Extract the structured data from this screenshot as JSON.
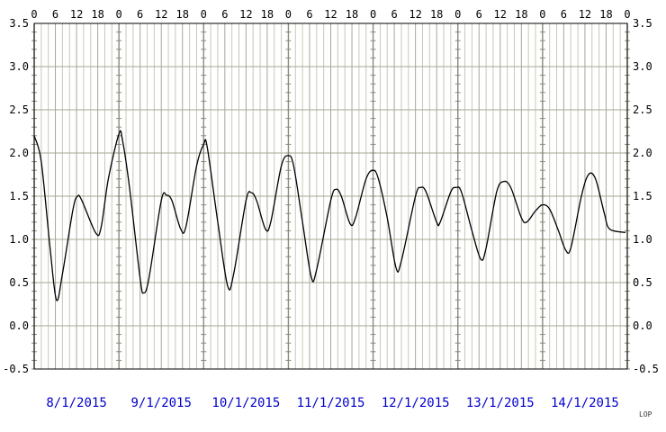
{
  "chart_data": {
    "type": "line",
    "title": "",
    "xlabel": "",
    "ylabel": "",
    "ylim": [
      -0.5,
      3.5
    ],
    "y_ticks": [
      "3.5",
      "3.0",
      "2.5",
      "2.0",
      "1.5",
      "1.0",
      "0.5",
      "0.0",
      "-0.5"
    ],
    "x_hour_ticks": [
      "0",
      "6",
      "12",
      "18"
    ],
    "x_hour_end": "0",
    "days": [
      "8/1/2015",
      "9/1/2015",
      "10/1/2015",
      "11/1/2015",
      "12/1/2015",
      "13/1/2015",
      "14/1/2015"
    ],
    "grid": true,
    "x_unit": "hours from 8/1/2015 0:00",
    "series": [
      {
        "values": [
          [
            0,
            2.2
          ],
          [
            2,
            1.9
          ],
          [
            4.5,
            0.9
          ],
          [
            6.3,
            0.3
          ],
          [
            8,
            0.6
          ],
          [
            11,
            1.35
          ],
          [
            12.3,
            1.5
          ],
          [
            13.5,
            1.45
          ],
          [
            17.5,
            1.07
          ],
          [
            19,
            1.15
          ],
          [
            21,
            1.7
          ],
          [
            24,
            2.22
          ],
          [
            25,
            2.15
          ],
          [
            27,
            1.6
          ],
          [
            30,
            0.55
          ],
          [
            31,
            0.38
          ],
          [
            32.5,
            0.55
          ],
          [
            36,
            1.45
          ],
          [
            37.5,
            1.51
          ],
          [
            39,
            1.45
          ],
          [
            41.5,
            1.12
          ],
          [
            43,
            1.15
          ],
          [
            46,
            1.85
          ],
          [
            48,
            2.1
          ],
          [
            49,
            2.07
          ],
          [
            52,
            1.2
          ],
          [
            54.8,
            0.46
          ],
          [
            56.5,
            0.6
          ],
          [
            60,
            1.45
          ],
          [
            61.5,
            1.54
          ],
          [
            63,
            1.45
          ],
          [
            65.5,
            1.12
          ],
          [
            67,
            1.2
          ],
          [
            70,
            1.85
          ],
          [
            72,
            1.97
          ],
          [
            73.5,
            1.85
          ],
          [
            76,
            1.2
          ],
          [
            78.5,
            0.56
          ],
          [
            80,
            0.65
          ],
          [
            84,
            1.45
          ],
          [
            85.5,
            1.58
          ],
          [
            87,
            1.5
          ],
          [
            89.5,
            1.18
          ],
          [
            91,
            1.25
          ],
          [
            94,
            1.7
          ],
          [
            96,
            1.8
          ],
          [
            97.5,
            1.7
          ],
          [
            100,
            1.25
          ],
          [
            102.5,
            0.67
          ],
          [
            104,
            0.75
          ],
          [
            108,
            1.5
          ],
          [
            109.5,
            1.6
          ],
          [
            111,
            1.55
          ],
          [
            114,
            1.2
          ],
          [
            115,
            1.2
          ],
          [
            118,
            1.55
          ],
          [
            119.5,
            1.6
          ],
          [
            121,
            1.55
          ],
          [
            124,
            1.1
          ],
          [
            126.5,
            0.77
          ],
          [
            128,
            0.9
          ],
          [
            131,
            1.55
          ],
          [
            133,
            1.67
          ],
          [
            135,
            1.6
          ],
          [
            138,
            1.25
          ],
          [
            139.5,
            1.2
          ],
          [
            142,
            1.33
          ],
          [
            144,
            1.4
          ],
          [
            146,
            1.35
          ],
          [
            148.5,
            1.1
          ],
          [
            150.5,
            0.88
          ],
          [
            152,
            0.9
          ],
          [
            155,
            1.5
          ],
          [
            157,
            1.75
          ],
          [
            159,
            1.7
          ],
          [
            161.5,
            1.3
          ],
          [
            163,
            1.12
          ],
          [
            167.5,
            1.08
          ]
        ]
      }
    ]
  },
  "footer": {
    "credit": "LOP"
  }
}
